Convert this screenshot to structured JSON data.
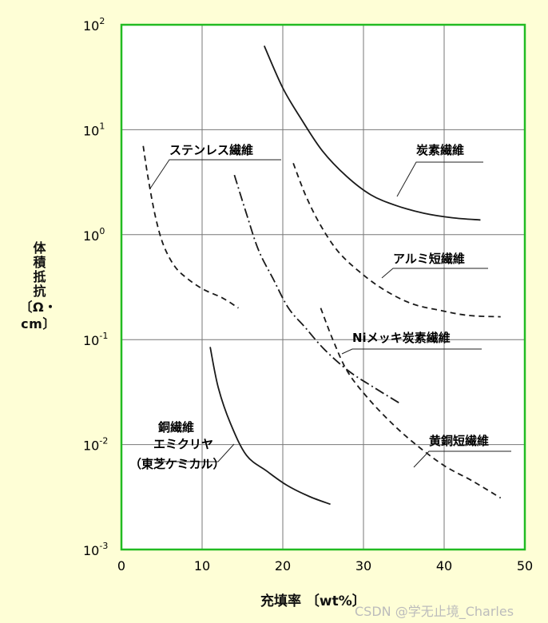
{
  "chart_data": {
    "type": "line",
    "xlabel": "充填率 〔wt%〕",
    "ylabel": "体積抵抗",
    "yunit": "〔Ω・cm〕",
    "xlim": [
      0,
      50
    ],
    "ylim_log10": [
      -3,
      2
    ],
    "x_ticks": [
      "0",
      "10",
      "20",
      "30",
      "40",
      "50"
    ],
    "y_ticks": [
      {
        "base": "10",
        "exp": "-3"
      },
      {
        "base": "10",
        "exp": "-2"
      },
      {
        "base": "10",
        "exp": "-1"
      },
      {
        "base": "10",
        "exp": "0"
      },
      {
        "base": "10",
        "exp": "1"
      },
      {
        "base": "10",
        "exp": "2"
      }
    ],
    "y_scale": "log",
    "grid": true,
    "colors": {
      "frame": "#22bb22",
      "grid": "#777777",
      "curve": "#1a1a1a",
      "background": "#fefed6"
    },
    "series": [
      {
        "name": "ステンレス繊維",
        "style": "dashed",
        "x": [
          2.7,
          3.3,
          4.2,
          5.2,
          6.6,
          8.2,
          10.2,
          12.5,
          14.5
        ],
        "y": [
          7,
          3.5,
          1.5,
          0.8,
          0.5,
          0.38,
          0.3,
          0.25,
          0.2
        ]
      },
      {
        "name": "炭素繊維",
        "style": "solid",
        "x": [
          17.7,
          20,
          22.3,
          24.9,
          27.9,
          30.9,
          34,
          37.5,
          41,
          44.5
        ],
        "y": [
          63,
          25,
          12.6,
          6.3,
          3.6,
          2.4,
          1.9,
          1.6,
          1.45,
          1.38
        ]
      },
      {
        "name": "アルミ短繊維",
        "style": "dashed",
        "x": [
          21.3,
          22.8,
          24.6,
          26.8,
          29.4,
          32.5,
          36,
          39.5,
          43,
          47
        ],
        "y": [
          4.8,
          2.4,
          1.26,
          0.7,
          0.45,
          0.3,
          0.22,
          0.19,
          0.17,
          0.165
        ]
      },
      {
        "name": "Niメッキ炭素繊維",
        "style": "dashdot",
        "x": [
          14,
          15.5,
          17,
          18.8,
          20.7,
          22.8,
          25.2,
          28.2,
          31.3,
          34.4
        ],
        "y": [
          3.7,
          1.58,
          0.71,
          0.38,
          0.2,
          0.13,
          0.08,
          0.05,
          0.035,
          0.025
        ]
      },
      {
        "name": "銅繊維",
        "style": "solid",
        "x": [
          11,
          12,
          13.5,
          15.5,
          18,
          20.5,
          23.3,
          25.9
        ],
        "y": [
          0.085,
          0.035,
          0.016,
          0.0079,
          0.0056,
          0.0041,
          0.0032,
          0.0027
        ]
      },
      {
        "name": "黄銅短繊維",
        "style": "dashed",
        "x": [
          24.7,
          26.2,
          28,
          30.5,
          33.5,
          36.5,
          40,
          43.5,
          47
        ],
        "y": [
          0.2,
          0.1,
          0.05,
          0.028,
          0.016,
          0.01,
          0.0063,
          0.0045,
          0.0031
        ]
      }
    ],
    "annotations": {
      "stainless": "ステンレス繊維",
      "carbon": "炭素繊維",
      "aluminum": "アルミ短繊維",
      "nickel": "Niメッキ炭素繊維",
      "copper_l1": "銅繊維",
      "copper_l2": "エミクリヤ",
      "copper_l3": "（東芝ケミカル）",
      "brass": "黄銅短繊維"
    }
  },
  "watermark": "CSDN @学无止境_Charles"
}
